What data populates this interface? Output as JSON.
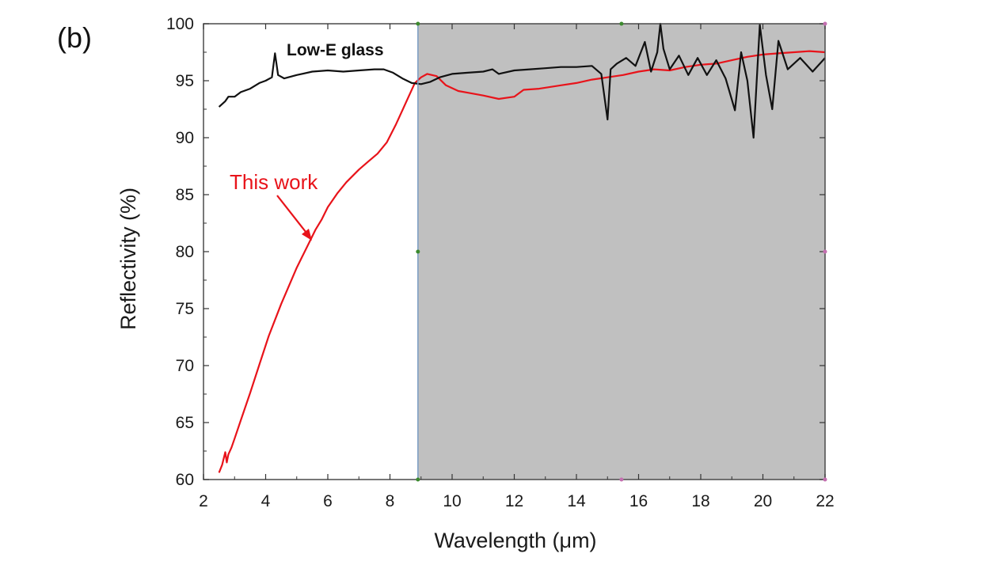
{
  "panel_label": "(b)",
  "chart_data": {
    "type": "line",
    "title": "",
    "xlabel": "Wavelength (μm)",
    "ylabel": "Reflectivity (%)",
    "xlim": [
      2,
      22
    ],
    "ylim": [
      60,
      100
    ],
    "xticks": [
      2,
      4,
      6,
      8,
      10,
      12,
      14,
      16,
      18,
      20,
      22
    ],
    "yticks": [
      60,
      65,
      70,
      75,
      80,
      85,
      90,
      95,
      100
    ],
    "shaded_region": {
      "x_start": 8.9,
      "x_end": 22,
      "color": "#c0c0c0"
    },
    "grid": false,
    "series": [
      {
        "name": "This work",
        "color": "#e8131a",
        "x": [
          2.5,
          2.6,
          2.7,
          2.75,
          2.8,
          2.9,
          3.0,
          3.2,
          3.5,
          3.8,
          4.1,
          4.5,
          5.0,
          5.4,
          5.6,
          5.8,
          6.0,
          6.3,
          6.6,
          7.0,
          7.3,
          7.6,
          7.9,
          8.2,
          8.5,
          8.8,
          9.0,
          9.2,
          9.5,
          9.8,
          10.2,
          10.6,
          11.0,
          11.5,
          12.0,
          12.3,
          12.8,
          13.5,
          14.0,
          14.5,
          15.0,
          15.5,
          16.0,
          16.5,
          17.0,
          17.5,
          18.0,
          18.5,
          19.0,
          19.5,
          20.0,
          20.5,
          21.0,
          21.5,
          22.0
        ],
        "y": [
          60.6,
          61.3,
          62.4,
          61.5,
          62.2,
          62.8,
          63.6,
          65.2,
          67.6,
          70.1,
          72.6,
          75.4,
          78.6,
          80.8,
          81.9,
          82.8,
          83.9,
          85.1,
          86.1,
          87.2,
          87.9,
          88.6,
          89.6,
          91.2,
          93.0,
          94.8,
          95.3,
          95.6,
          95.4,
          94.6,
          94.1,
          93.9,
          93.7,
          93.4,
          93.6,
          94.2,
          94.3,
          94.6,
          94.8,
          95.1,
          95.3,
          95.5,
          95.8,
          96.0,
          95.9,
          96.2,
          96.4,
          96.5,
          96.8,
          97.1,
          97.3,
          97.4,
          97.5,
          97.6,
          97.5
        ]
      },
      {
        "name": "Low-E glass",
        "color": "#111111",
        "x": [
          2.5,
          2.7,
          2.8,
          3.0,
          3.2,
          3.5,
          3.8,
          4.0,
          4.2,
          4.3,
          4.4,
          4.6,
          5.0,
          5.5,
          6.0,
          6.5,
          7.0,
          7.5,
          7.8,
          8.1,
          8.4,
          8.7,
          9.0,
          9.3,
          9.6,
          10.0,
          10.5,
          11.0,
          11.3,
          11.5,
          12.0,
          12.5,
          13.0,
          13.5,
          14.0,
          14.5,
          14.8,
          15.0,
          15.1,
          15.3,
          15.6,
          15.9,
          16.2,
          16.4,
          16.6,
          16.7,
          16.8,
          17.0,
          17.3,
          17.6,
          17.9,
          18.2,
          18.5,
          18.8,
          19.1,
          19.3,
          19.5,
          19.7,
          19.9,
          20.1,
          20.3,
          20.5,
          20.8,
          21.2,
          21.6,
          22.0
        ],
        "y": [
          92.7,
          93.2,
          93.6,
          93.6,
          94.0,
          94.3,
          94.8,
          95.0,
          95.3,
          97.4,
          95.5,
          95.2,
          95.5,
          95.8,
          95.9,
          95.8,
          95.9,
          96.0,
          96.0,
          95.7,
          95.2,
          94.8,
          94.7,
          94.9,
          95.3,
          95.6,
          95.7,
          95.8,
          96.0,
          95.6,
          95.9,
          96.0,
          96.1,
          96.2,
          96.2,
          96.3,
          95.6,
          91.6,
          96.0,
          96.5,
          97.0,
          96.3,
          98.4,
          95.8,
          97.5,
          100.0,
          97.8,
          96.0,
          97.2,
          95.5,
          97.0,
          95.5,
          96.8,
          95.2,
          92.4,
          97.5,
          95.0,
          90.0,
          99.9,
          95.5,
          92.5,
          98.5,
          96.0,
          97.0,
          95.8,
          97.0
        ]
      }
    ],
    "annotations": [
      {
        "name": "low-e-label",
        "text": "Low-E glass",
        "color": "#111111"
      },
      {
        "name": "this-work-label",
        "text": "This work",
        "color": "#e8131a"
      }
    ]
  }
}
